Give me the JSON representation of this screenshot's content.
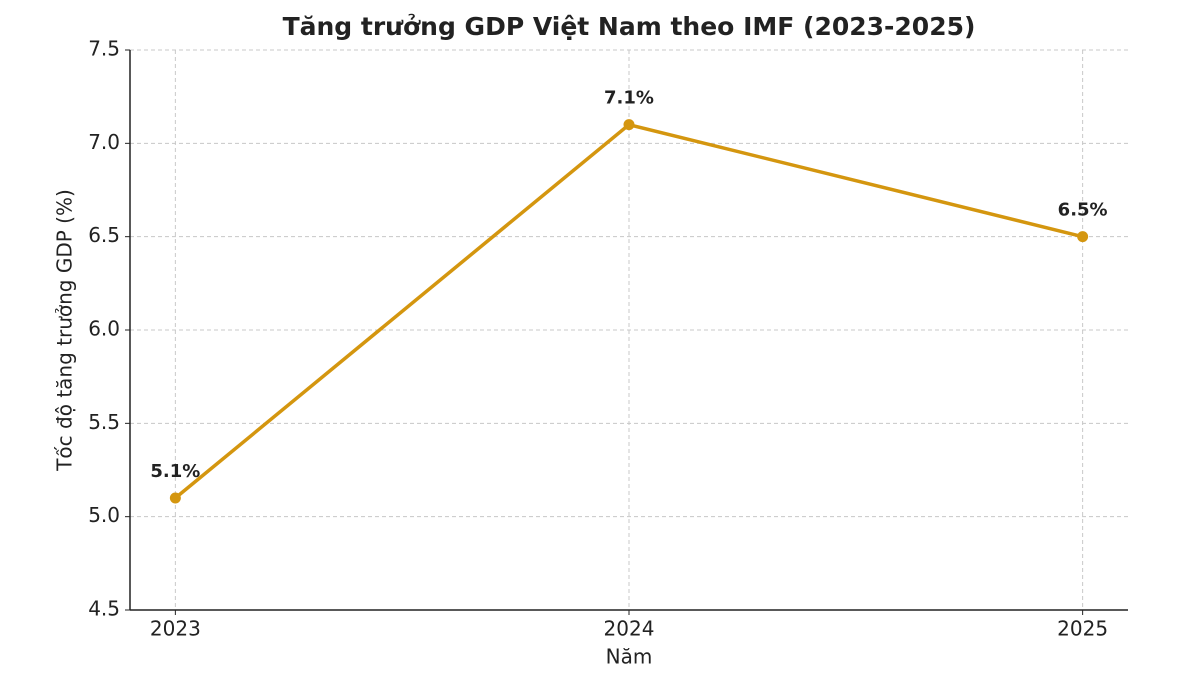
{
  "chart_data": {
    "type": "line",
    "title": "Tăng trưởng GDP Việt Nam theo IMF (2023-2025)",
    "x_label": "Năm",
    "y_label": "Tốc độ tăng trưởng GDP (%)",
    "x": [
      2023,
      2024,
      2025
    ],
    "values": [
      5.1,
      7.1,
      6.5
    ],
    "value_labels": [
      "5.1%",
      "7.1%",
      "6.5%"
    ],
    "color": "#d4960f",
    "xlim": [
      2022.9,
      2025.1
    ],
    "xticks": [
      2023,
      2024,
      2025
    ],
    "ylim": [
      4.5,
      7.5
    ],
    "yticks": [
      4.5,
      {
        "value": 5,
        "label": "5.0"
      },
      5.5,
      {
        "value": 6,
        "label": "6.0"
      },
      6.5,
      {
        "value": 7,
        "label": "7.0"
      },
      7.5
    ],
    "grid": true
  }
}
